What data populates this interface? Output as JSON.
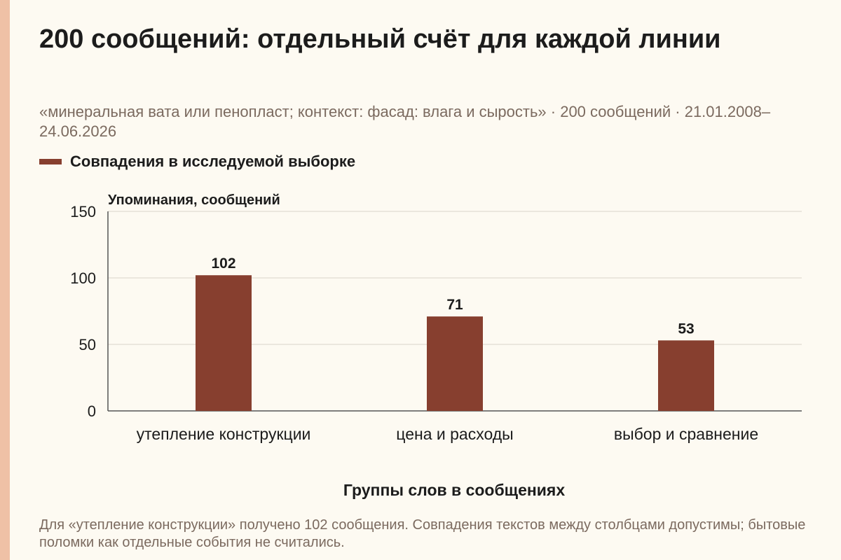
{
  "title": "200 сообщений: отдельный счёт для каждой линии",
  "subtitle": "«минеральная вата или пенопласт; контекст: фасад: влага и сырость» · 200 сообщений · 21.01.2008–24.06.2026",
  "note": "Для «утепление конструкции» получено 102 сообщения. Совпадения текстов между столбцами допустимы; бытовые поломки как отдельные события не считались.",
  "colors": {
    "background": "#fdfaf2",
    "accent_strip": "#efc1a6",
    "bar": "#873f2f",
    "grid": "#d9d4c9",
    "text": "#1c1c1c",
    "muted_text": "#7b6a5f"
  },
  "chart_data": {
    "type": "bar",
    "categories": [
      "утепление конструкции",
      "цена и расходы",
      "выбор и сравнение"
    ],
    "series": [
      {
        "name": "Совпадения в исследуемой выборке",
        "values": [
          102,
          71,
          53
        ]
      }
    ],
    "data_labels": [
      "102",
      "71",
      "53"
    ],
    "ylabel": "Упоминания, сообщений",
    "xlabel": "Группы слов в сообщениях",
    "ylim": [
      0,
      150
    ],
    "yticks": [
      0,
      50,
      100,
      150
    ],
    "grid": true,
    "legend_position": "top-left"
  }
}
